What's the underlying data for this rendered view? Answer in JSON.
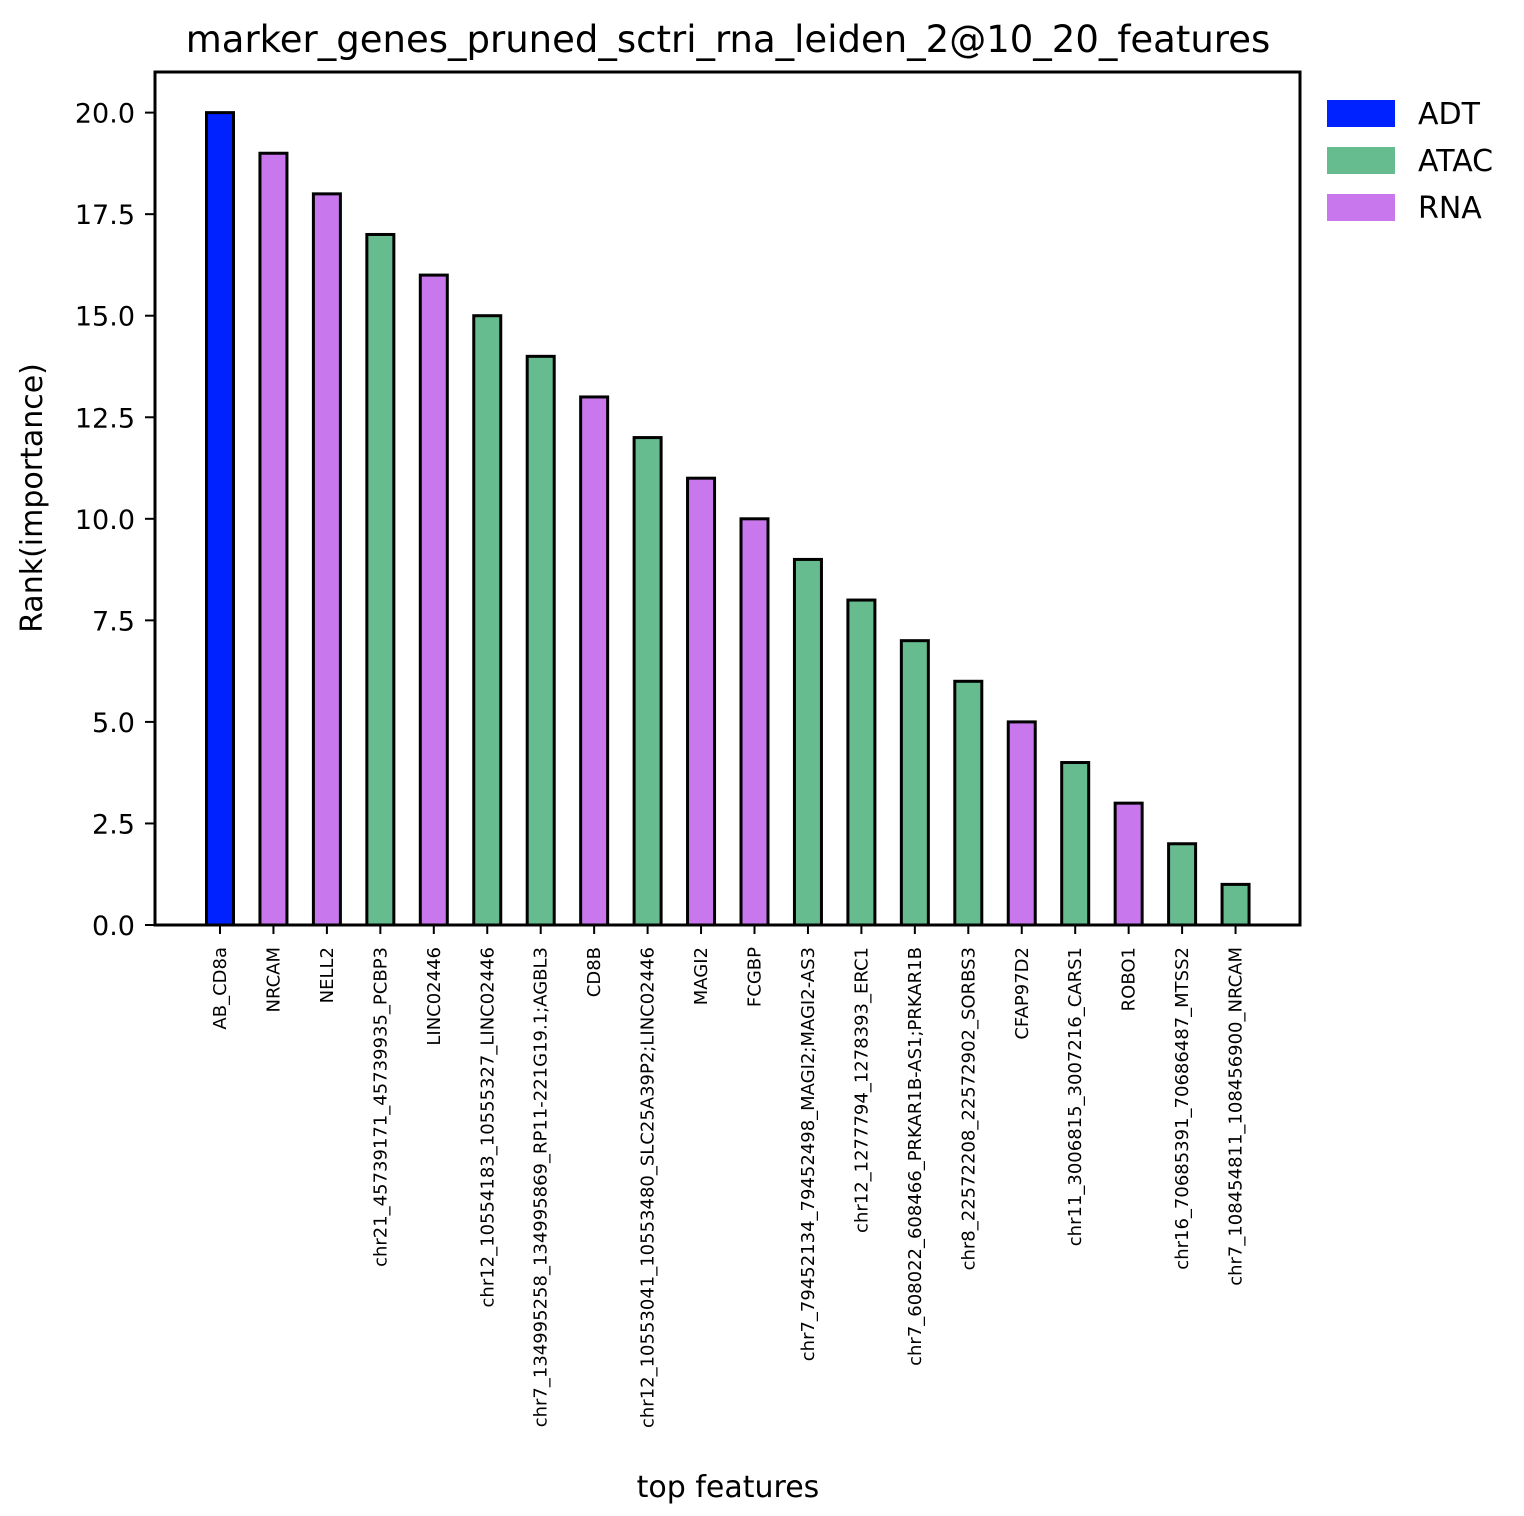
{
  "chart_data": {
    "type": "bar",
    "title": "marker_genes_pruned_sctri_rna_leiden_2@10_20_features",
    "xlabel": "top features",
    "ylabel": "Rank(importance)",
    "ylim": [
      0,
      21
    ],
    "yticks": [
      "0.0",
      "2.5",
      "5.0",
      "7.5",
      "10.0",
      "12.5",
      "15.0",
      "17.5",
      "20.0"
    ],
    "ytick_values": [
      0,
      2.5,
      5,
      7.5,
      10,
      12.5,
      15,
      17.5,
      20
    ],
    "grid": false,
    "legend_position": "outside-top-right",
    "legend": [
      {
        "name": "ADT",
        "color": "#0022ff"
      },
      {
        "name": "ATAC",
        "color": "#66bb8f"
      },
      {
        "name": "RNA",
        "color": "#c878ec"
      }
    ],
    "categories": [
      "AB_CD8a",
      "NRCAM",
      "NELL2",
      "chr21_45739171_45739935_PCBP3",
      "LINC02446",
      "chr12_10554183_10555327_LINC02446",
      "chr7_134995258_134995869_RP11-221G19.1;AGBL3",
      "CD8B",
      "chr12_10553041_10553480_SLC25A39P2;LINC02446",
      "MAGI2",
      "FCGBP",
      "chr7_79452134_79452498_MAGI2;MAGI2-AS3",
      "chr12_1277794_1278393_ERC1",
      "chr7_608022_608466_PRKAR1B-AS1;PRKAR1B",
      "chr8_22572208_22572902_SORBS3",
      "CFAP97D2",
      "chr11_3006815_3007216_CARS1",
      "ROBO1",
      "chr16_70685391_70686487_MTSS2",
      "chr7_108454811_108456900_NRCAM"
    ],
    "values": [
      20,
      19,
      18,
      17,
      16,
      15,
      14,
      13,
      12,
      11,
      10,
      9,
      8,
      7,
      6,
      5,
      4,
      3,
      2,
      1
    ],
    "modality": [
      "ADT",
      "RNA",
      "RNA",
      "ATAC",
      "RNA",
      "ATAC",
      "ATAC",
      "RNA",
      "ATAC",
      "RNA",
      "RNA",
      "ATAC",
      "ATAC",
      "ATAC",
      "ATAC",
      "RNA",
      "ATAC",
      "RNA",
      "ATAC",
      "ATAC"
    ]
  }
}
